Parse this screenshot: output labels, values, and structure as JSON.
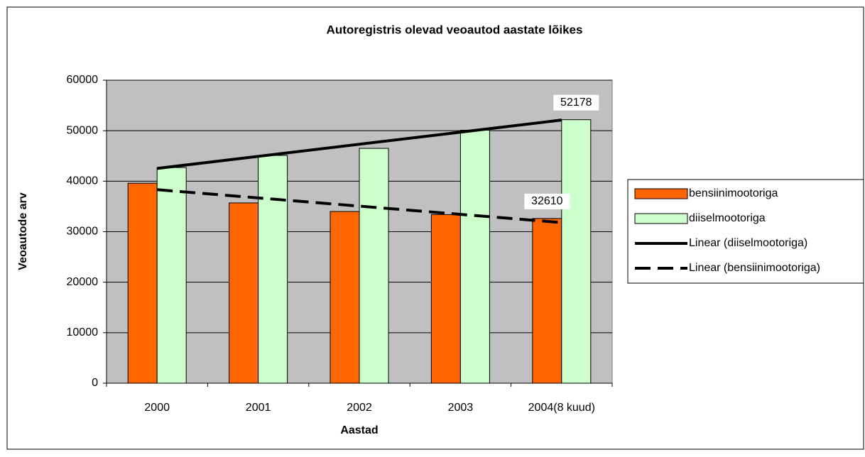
{
  "chart_data": {
    "type": "bar",
    "title": "Autoregistris olevad veoautod aastate lõikes",
    "x_label": "Aastad",
    "y_label": "Veoautode arv",
    "categories": [
      "2000",
      "2001",
      "2002",
      "2003",
      "2004(8 kuud)"
    ],
    "series": [
      {
        "name": "bensiinimootoriga",
        "color": "#ff6600",
        "values": [
          39600,
          35700,
          34000,
          33400,
          32610
        ],
        "trendline": {
          "name": "Linear (bensiinimootoriga)",
          "type": "linear",
          "style": "dashed"
        }
      },
      {
        "name": "diiselmootoriga",
        "color": "#ccffcc",
        "values": [
          42700,
          45100,
          46500,
          50100,
          52178
        ],
        "trendline": {
          "name": "Linear (diiselmootoriga)",
          "type": "linear",
          "style": "solid"
        }
      }
    ],
    "data_labels": "last",
    "ylim": [
      0,
      60000
    ],
    "yticks": [
      0,
      10000,
      20000,
      30000,
      40000,
      50000,
      60000
    ],
    "grid": true,
    "plot_background": "#c0c0c0",
    "legend": "right"
  }
}
